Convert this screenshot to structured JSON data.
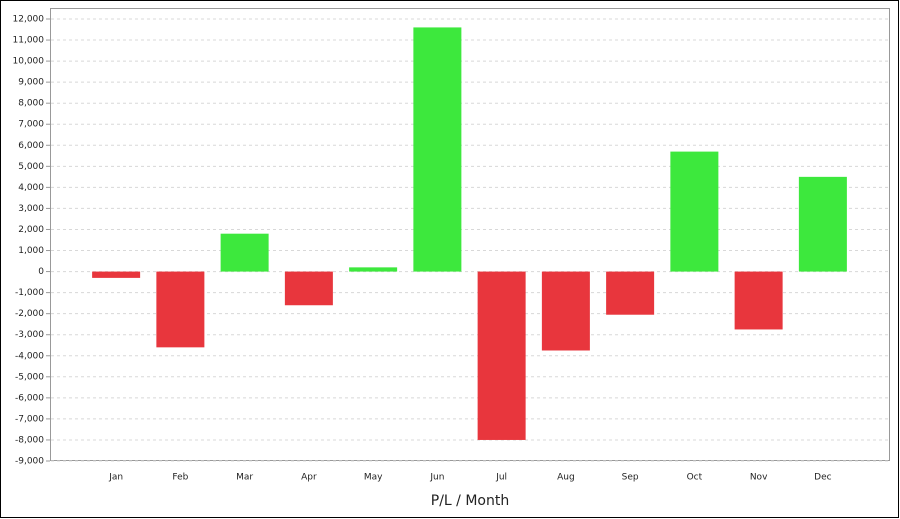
{
  "chart_data": {
    "type": "bar",
    "x_label": "P/L / Month",
    "categories": [
      "Jan",
      "Feb",
      "Mar",
      "Apr",
      "May",
      "Jun",
      "Jul",
      "Aug",
      "Sep",
      "Oct",
      "Nov",
      "Dec"
    ],
    "values": [
      -300,
      -3600,
      1800,
      -1600,
      200,
      11600,
      -8000,
      -3750,
      -2050,
      5700,
      -2750,
      4500
    ],
    "positive_color": "#3de83d",
    "negative_color": "#e8363d",
    "ylim": [
      -9000,
      12000
    ],
    "yticks": [
      {
        "value": -9000,
        "label": "-9,000"
      },
      {
        "value": -8000,
        "label": "-8,000"
      },
      {
        "value": -7000,
        "label": "-7,000"
      },
      {
        "value": -6000,
        "label": "-6,000"
      },
      {
        "value": -5000,
        "label": "-5,000"
      },
      {
        "value": -4000,
        "label": "-4,000"
      },
      {
        "value": -3000,
        "label": "-3,000"
      },
      {
        "value": -2000,
        "label": "-2,000"
      },
      {
        "value": -1000,
        "label": "-1,000"
      },
      0,
      {
        "value": 1000,
        "label": "1,000"
      },
      {
        "value": 2000,
        "label": "2,000"
      },
      {
        "value": 3000,
        "label": "3,000"
      },
      {
        "value": 4000,
        "label": "4,000"
      },
      {
        "value": 5000,
        "label": "5,000"
      },
      {
        "value": 6000,
        "label": "6,000"
      },
      {
        "value": 7000,
        "label": "7,000"
      },
      {
        "value": 8000,
        "label": "8,000"
      },
      {
        "value": 9000,
        "label": "9,000"
      },
      {
        "value": 10000,
        "label": "10,000"
      },
      {
        "value": 11000,
        "label": "11,000"
      },
      {
        "value": 12000,
        "label": "12,000"
      }
    ],
    "grid": true
  }
}
